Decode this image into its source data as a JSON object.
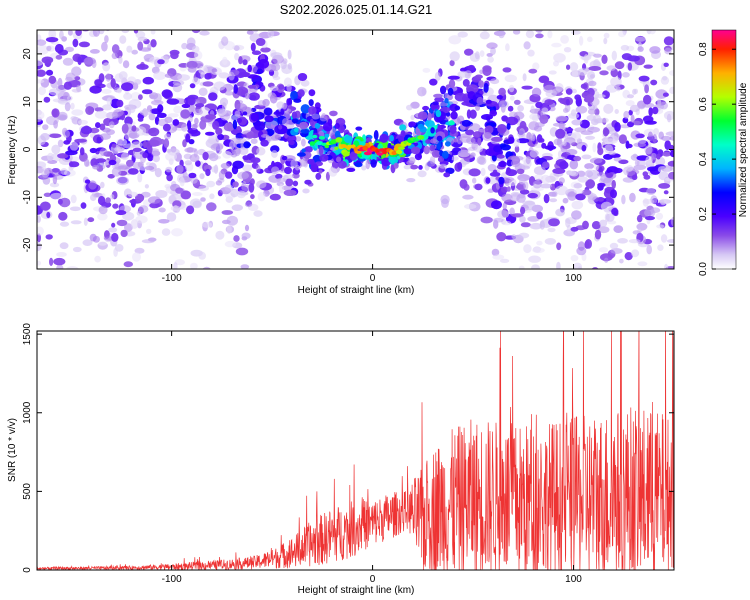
{
  "title": "S202.2026.025.01.14.G21",
  "chart_data": [
    {
      "type": "heatmap",
      "name": "spectrogram",
      "xlabel": "Height of straight line (km)",
      "ylabel": "Frequency (Hz)",
      "xlim": [
        -167,
        150
      ],
      "ylim": [
        -25,
        25
      ],
      "x_ticks": [
        -100,
        0,
        100
      ],
      "y_ticks": [
        -20,
        -10,
        0,
        10,
        20
      ],
      "colorbar": {
        "label": "Normalized spectral amplitude",
        "range": [
          0,
          0.87
        ],
        "ticks": [
          0.0,
          0.2,
          0.4,
          0.6,
          0.8
        ],
        "tick_labels": [
          "0.0",
          "0.2",
          "0.4",
          "0.6",
          "0.8"
        ],
        "colormap": [
          "#ffffff",
          "#d8c8f2",
          "#8a4be8",
          "#5a00ff",
          "#0000ff",
          "#00c8ff",
          "#00ff60",
          "#c8ff00",
          "#ff9000",
          "#ff0000",
          "#ff00a0"
        ]
      },
      "ridge": {
        "description": "energy concentrated near 0 Hz around height 0 km, spreading toward edges",
        "points": [
          [
            -60,
            10
          ],
          [
            -50,
            6
          ],
          [
            -40,
            4
          ],
          [
            -25,
            1.5
          ],
          [
            -10,
            0.5
          ],
          [
            0,
            0
          ],
          [
            10,
            -0.5
          ],
          [
            20,
            2
          ],
          [
            30,
            4
          ],
          [
            40,
            6
          ],
          [
            50,
            7
          ]
        ]
      }
    },
    {
      "type": "line",
      "name": "snr",
      "xlabel": "Height of straight line (km)",
      "ylabel": "SNR (10 * v/v)",
      "xlim": [
        -167,
        150
      ],
      "ylim": [
        0,
        1520
      ],
      "x_ticks": [
        -100,
        0,
        100
      ],
      "y_ticks": [
        0,
        500,
        1000,
        1500
      ],
      "color": "#ee3333",
      "envelope": {
        "x": [
          -167,
          -140,
          -120,
          -100,
          -80,
          -60,
          -50,
          -40,
          -30,
          -20,
          -10,
          0,
          10,
          18,
          20,
          25,
          30,
          40,
          50,
          60,
          70,
          80,
          90,
          100,
          110,
          120,
          130,
          140,
          150
        ],
        "base": [
          10,
          12,
          15,
          20,
          30,
          45,
          70,
          110,
          170,
          220,
          260,
          300,
          350,
          380,
          360,
          300,
          380,
          420,
          450,
          460,
          440,
          420,
          440,
          450,
          460,
          470,
          480,
          470,
          470
        ],
        "spread": [
          8,
          10,
          12,
          20,
          30,
          40,
          60,
          100,
          150,
          180,
          180,
          150,
          150,
          120,
          220,
          350,
          420,
          480,
          520,
          500,
          500,
          520,
          520,
          520,
          550,
          560,
          580,
          560,
          500
        ]
      }
    }
  ]
}
